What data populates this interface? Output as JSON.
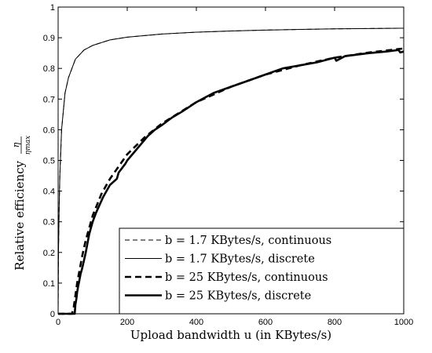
{
  "chart_data": {
    "type": "line",
    "title": "",
    "xlabel": "Upload bandwidth u (in KBytes/s)",
    "ylabel": "Relative efficiency η/η_max",
    "ylabel_text": "Relative efficiency",
    "ylabel_frac_num": "η",
    "ylabel_frac_den": "ηmax",
    "xlim": [
      0,
      1000
    ],
    "ylim": [
      0,
      1
    ],
    "x_ticks": [
      0,
      200,
      400,
      600,
      800,
      1000
    ],
    "y_ticks": [
      0,
      0.1,
      0.2,
      0.3,
      0.4,
      0.5,
      0.6,
      0.7,
      0.8,
      0.9,
      1
    ],
    "x_tick_labels": [
      "0",
      "200",
      "400",
      "600",
      "800",
      "1000"
    ],
    "y_tick_labels": [
      "0",
      "0.1",
      "0.2",
      "0.3",
      "0.4",
      "0.5",
      "0.6",
      "0.7",
      "0.8",
      "0.9",
      "1"
    ],
    "grid": false,
    "legend_position": "bottom-right",
    "legend_labels": [
      "b = 1.7 KBytes/s, continuous",
      "b = 1.7 KBytes/s, discrete",
      "b = 25 KBytes/s, continuous",
      "b = 25 KBytes/s, discrete"
    ],
    "series": [
      {
        "name": "b = 1.7 KBytes/s, continuous",
        "style": "thin-dashed",
        "x": [
          0,
          1,
          3,
          5,
          10,
          20,
          30,
          50,
          75,
          100,
          150,
          200,
          300,
          400,
          500,
          600,
          700,
          800,
          900,
          1000
        ],
        "y": [
          0,
          0.2,
          0.35,
          0.45,
          0.6,
          0.72,
          0.77,
          0.83,
          0.86,
          0.875,
          0.893,
          0.902,
          0.912,
          0.918,
          0.922,
          0.925,
          0.927,
          0.929,
          0.93,
          0.931
        ]
      },
      {
        "name": "b = 1.7 KBytes/s, discrete",
        "style": "thin-solid",
        "x": [
          0,
          1,
          3,
          5,
          10,
          20,
          30,
          50,
          75,
          100,
          150,
          200,
          300,
          400,
          500,
          600,
          700,
          800,
          900,
          1000
        ],
        "y": [
          0,
          0.2,
          0.35,
          0.45,
          0.6,
          0.72,
          0.77,
          0.83,
          0.86,
          0.875,
          0.893,
          0.902,
          0.912,
          0.918,
          0.922,
          0.925,
          0.927,
          0.929,
          0.93,
          0.931
        ]
      },
      {
        "name": "b = 25 KBytes/s, continuous",
        "style": "thick-dashed",
        "x": [
          0,
          40,
          45,
          50,
          55,
          60,
          70,
          80,
          100,
          125,
          150,
          175,
          200,
          250,
          300,
          350,
          400,
          500,
          600,
          700,
          800,
          900,
          1000
        ],
        "y": [
          0,
          0,
          0.02,
          0.06,
          0.1,
          0.13,
          0.19,
          0.24,
          0.32,
          0.39,
          0.44,
          0.48,
          0.52,
          0.575,
          0.62,
          0.655,
          0.69,
          0.74,
          0.78,
          0.81,
          0.835,
          0.852,
          0.865
        ]
      },
      {
        "name": "b = 25 KBytes/s, discrete",
        "style": "thick-solid",
        "x": [
          0,
          48,
          50,
          53,
          55,
          58,
          60,
          65,
          70,
          80,
          90,
          100,
          110,
          130,
          150,
          170,
          175,
          195,
          200,
          230,
          260,
          280,
          300,
          330,
          360,
          400,
          450,
          500,
          550,
          600,
          650,
          700,
          750,
          800,
          805,
          830,
          900,
          950,
          985,
          990,
          1000
        ],
        "y": [
          0,
          0,
          0.03,
          0.05,
          0.07,
          0.09,
          0.1,
          0.13,
          0.15,
          0.2,
          0.26,
          0.3,
          0.33,
          0.38,
          0.42,
          0.44,
          0.46,
          0.49,
          0.5,
          0.54,
          0.58,
          0.6,
          0.615,
          0.64,
          0.66,
          0.69,
          0.72,
          0.74,
          0.76,
          0.78,
          0.8,
          0.81,
          0.82,
          0.835,
          0.825,
          0.84,
          0.85,
          0.855,
          0.86,
          0.852,
          0.855
        ]
      }
    ]
  }
}
